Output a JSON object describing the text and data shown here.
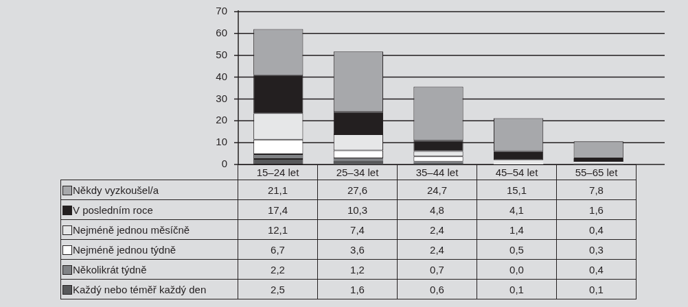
{
  "chart_data": {
    "type": "bar",
    "stacked": true,
    "categories": [
      "15–24 let",
      "25–34 let",
      "35–44 let",
      "45–54 let",
      "55–65 let"
    ],
    "series": [
      {
        "name": "Každý nebo téměř každý den",
        "color": "#58595b",
        "values": [
          2.5,
          1.6,
          0.6,
          0.1,
          0.1
        ],
        "value_labels": [
          "2,5",
          "1,6",
          "0,6",
          "0,1",
          "0,1"
        ]
      },
      {
        "name": "Několikrát týdně",
        "color": "#808285",
        "values": [
          2.2,
          1.2,
          0.7,
          0.0,
          0.4
        ],
        "value_labels": [
          "2,2",
          "1,2",
          "0,7",
          "0,0",
          "0,4"
        ]
      },
      {
        "name": "Nejméně jednou týdně",
        "color": "#ffffff",
        "values": [
          6.7,
          3.6,
          2.4,
          0.5,
          0.3
        ],
        "value_labels": [
          "6,7",
          "3,6",
          "2,4",
          "0,5",
          "0,3"
        ]
      },
      {
        "name": "Nejméně jednou měsíčně",
        "color": "#e6e7e8",
        "values": [
          12.1,
          7.4,
          2.4,
          1.4,
          0.4
        ],
        "value_labels": [
          "12,1",
          "7,4",
          "2,4",
          "1,4",
          "0,4"
        ]
      },
      {
        "name": "V posledním roce",
        "color": "#231f20",
        "values": [
          17.4,
          10.3,
          4.8,
          4.1,
          1.6
        ],
        "value_labels": [
          "17,4",
          "10,3",
          "4,8",
          "4,1",
          "1,6"
        ]
      },
      {
        "name": "Někdy vyzkoušel/a",
        "color": "#a7a8ab",
        "values": [
          21.1,
          27.6,
          24.7,
          15.1,
          7.8
        ],
        "value_labels": [
          "21,1",
          "27,6",
          "24,7",
          "15,1",
          "7,8"
        ]
      }
    ],
    "ylim": [
      0,
      70
    ],
    "yticks": [
      0,
      10,
      20,
      30,
      40,
      50,
      60,
      70
    ],
    "grid": "y",
    "legend": "bottom left"
  }
}
